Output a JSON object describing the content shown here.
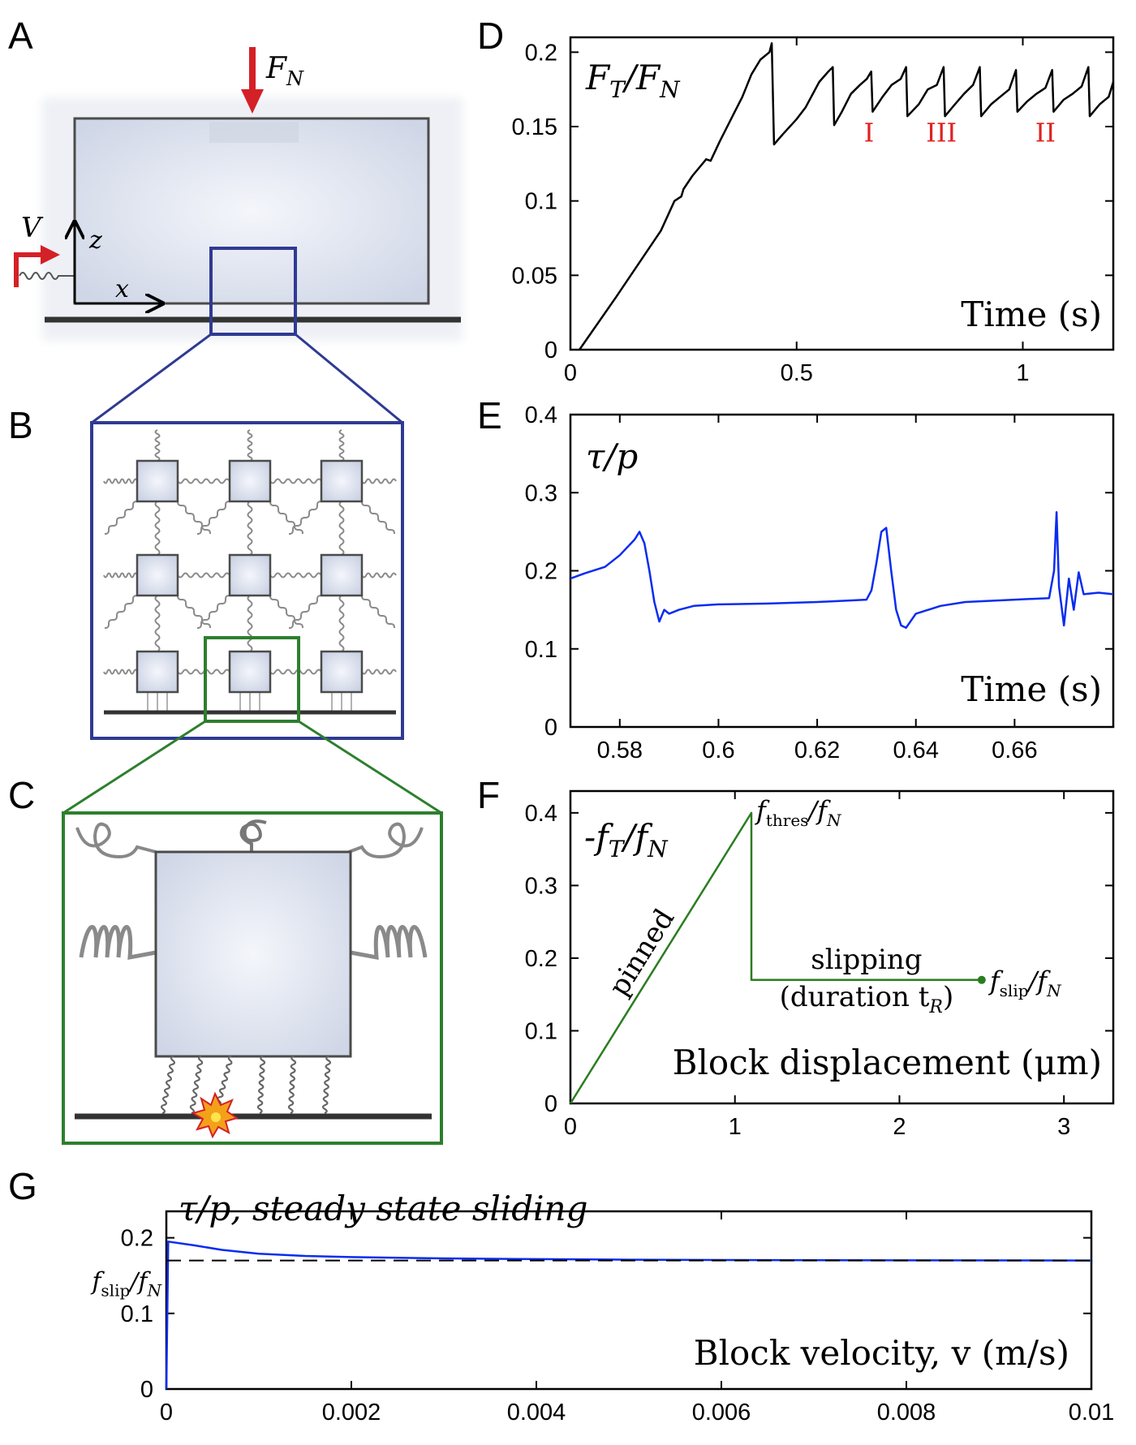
{
  "panels": {
    "A": {
      "letter": "A",
      "force_label": "F",
      "force_sub": "N",
      "velocity_label": "V",
      "z_label": "z",
      "x_label": "x"
    },
    "B": {
      "letter": "B"
    },
    "C": {
      "letter": "C"
    }
  },
  "colors": {
    "blue_frame": "#2f3a93",
    "green_frame": "#2d7f2d",
    "red_arrow": "#d42027",
    "block_fill": "#dde3ef",
    "curve_blue": "#0a2cf0",
    "curve_green": "#2a7d1f"
  },
  "chart_data": [
    {
      "id": "D",
      "letter": "D",
      "type": "line",
      "label_text": {
        "main": "F",
        "sub1": "T",
        "sep": "/F",
        "sub2": "N"
      },
      "xlabel": "Time (s)",
      "xlim": [
        0,
        1.2
      ],
      "ylim": [
        0,
        0.21
      ],
      "xticks": [
        "0",
        "0.5",
        "1"
      ],
      "xtick_values": [
        0,
        0.5,
        1
      ],
      "yticks": [
        "0",
        "0.05",
        "0.1",
        "0.15",
        "0.2"
      ],
      "ytick_values": [
        0,
        0.05,
        0.1,
        0.15,
        0.2
      ],
      "annotations": [
        {
          "text": "I",
          "x": 0.66,
          "y": 0.14
        },
        {
          "text": "III",
          "x": 0.82,
          "y": 0.14
        },
        {
          "text": "II",
          "x": 1.05,
          "y": 0.14
        }
      ],
      "series": [
        {
          "values": [
            [
              0.02,
              0
            ],
            [
              0.1,
              0.035
            ],
            [
              0.2,
              0.08
            ],
            [
              0.23,
              0.1
            ],
            [
              0.245,
              0.103
            ],
            [
              0.25,
              0.108
            ],
            [
              0.27,
              0.117
            ],
            [
              0.3,
              0.128
            ],
            [
              0.31,
              0.127
            ],
            [
              0.33,
              0.14
            ],
            [
              0.36,
              0.158
            ],
            [
              0.38,
              0.17
            ],
            [
              0.4,
              0.185
            ],
            [
              0.42,
              0.195
            ],
            [
              0.44,
              0.2
            ],
            [
              0.445,
              0.206
            ],
            [
              0.45,
              0.138
            ],
            [
              0.47,
              0.145
            ],
            [
              0.5,
              0.155
            ],
            [
              0.52,
              0.163
            ],
            [
              0.55,
              0.18
            ],
            [
              0.57,
              0.187
            ],
            [
              0.58,
              0.19
            ],
            [
              0.583,
              0.151
            ],
            [
              0.6,
              0.16
            ],
            [
              0.62,
              0.172
            ],
            [
              0.64,
              0.178
            ],
            [
              0.655,
              0.182
            ],
            [
              0.665,
              0.187
            ],
            [
              0.668,
              0.16
            ],
            [
              0.69,
              0.17
            ],
            [
              0.71,
              0.178
            ],
            [
              0.73,
              0.182
            ],
            [
              0.742,
              0.19
            ],
            [
              0.745,
              0.157
            ],
            [
              0.77,
              0.165
            ],
            [
              0.79,
              0.175
            ],
            [
              0.81,
              0.178
            ],
            [
              0.825,
              0.19
            ],
            [
              0.828,
              0.157
            ],
            [
              0.85,
              0.165
            ],
            [
              0.87,
              0.172
            ],
            [
              0.89,
              0.178
            ],
            [
              0.905,
              0.19
            ],
            [
              0.908,
              0.157
            ],
            [
              0.93,
              0.165
            ],
            [
              0.95,
              0.17
            ],
            [
              0.97,
              0.175
            ],
            [
              0.985,
              0.188
            ],
            [
              0.988,
              0.16
            ],
            [
              1.01,
              0.167
            ],
            [
              1.03,
              0.172
            ],
            [
              1.05,
              0.176
            ],
            [
              1.065,
              0.188
            ],
            [
              1.068,
              0.16
            ],
            [
              1.09,
              0.168
            ],
            [
              1.11,
              0.172
            ],
            [
              1.13,
              0.177
            ],
            [
              1.145,
              0.19
            ],
            [
              1.148,
              0.157
            ],
            [
              1.17,
              0.165
            ],
            [
              1.19,
              0.17
            ],
            [
              1.2,
              0.18
            ]
          ]
        }
      ]
    },
    {
      "id": "E",
      "letter": "E",
      "type": "line",
      "label_text": {
        "main": "τ/p"
      },
      "xlabel": "Time (s)",
      "xlim": [
        0.57,
        0.68
      ],
      "ylim": [
        0,
        0.4
      ],
      "xticks": [
        "0.58",
        "0.6",
        "0.62",
        "0.64",
        "0.66"
      ],
      "xtick_values": [
        0.58,
        0.6,
        0.62,
        0.64,
        0.66
      ],
      "yticks": [
        "0",
        "0.1",
        "0.2",
        "0.3",
        "0.4"
      ],
      "ytick_values": [
        0,
        0.1,
        0.2,
        0.3,
        0.4
      ],
      "series": [
        {
          "values": [
            [
              0.57,
              0.19
            ],
            [
              0.573,
              0.197
            ],
            [
              0.577,
              0.205
            ],
            [
              0.58,
              0.22
            ],
            [
              0.583,
              0.24
            ],
            [
              0.584,
              0.25
            ],
            [
              0.585,
              0.235
            ],
            [
              0.586,
              0.2
            ],
            [
              0.587,
              0.16
            ],
            [
              0.588,
              0.135
            ],
            [
              0.589,
              0.15
            ],
            [
              0.59,
              0.145
            ],
            [
              0.592,
              0.15
            ],
            [
              0.595,
              0.155
            ],
            [
              0.6,
              0.157
            ],
            [
              0.61,
              0.158
            ],
            [
              0.62,
              0.16
            ],
            [
              0.63,
              0.163
            ],
            [
              0.631,
              0.175
            ],
            [
              0.632,
              0.21
            ],
            [
              0.633,
              0.25
            ],
            [
              0.634,
              0.255
            ],
            [
              0.635,
              0.2
            ],
            [
              0.636,
              0.15
            ],
            [
              0.637,
              0.13
            ],
            [
              0.638,
              0.127
            ],
            [
              0.64,
              0.145
            ],
            [
              0.645,
              0.155
            ],
            [
              0.65,
              0.16
            ],
            [
              0.66,
              0.163
            ],
            [
              0.667,
              0.165
            ],
            [
              0.668,
              0.2
            ],
            [
              0.6685,
              0.275
            ],
            [
              0.669,
              0.18
            ],
            [
              0.67,
              0.13
            ],
            [
              0.671,
              0.19
            ],
            [
              0.672,
              0.15
            ],
            [
              0.673,
              0.198
            ],
            [
              0.674,
              0.17
            ],
            [
              0.677,
              0.172
            ],
            [
              0.68,
              0.17
            ]
          ]
        }
      ]
    },
    {
      "id": "F",
      "letter": "F",
      "type": "line",
      "label_text": {
        "main": "-f",
        "sub1": "T",
        "sep": "/f",
        "sub2": "N"
      },
      "xlabel": "Block displacement (μm)",
      "xlim": [
        0,
        3.3
      ],
      "ylim": [
        0,
        0.43
      ],
      "xticks": [
        "0",
        "1",
        "2",
        "3"
      ],
      "xtick_values": [
        0,
        1,
        2,
        3
      ],
      "yticks": [
        "0",
        "0.1",
        "0.2",
        "0.3",
        "0.4"
      ],
      "ytick_values": [
        0,
        0.1,
        0.2,
        0.3,
        0.4
      ],
      "annotations": {
        "pinned": "pinned",
        "slipping": "slipping",
        "duration": "(duration t",
        "duration_sub": "R",
        "duration_end": ")",
        "thres_main": "f",
        "thres_sub": "thres",
        "thres_sep": "/f",
        "thres_sub2": "N",
        "slip_main": "f",
        "slip_sub": "slip",
        "slip_sep": "/f",
        "slip_sub2": "N"
      },
      "series": [
        {
          "values": [
            [
              0,
              0
            ],
            [
              1.1,
              0.4
            ],
            [
              1.1,
              0.17
            ],
            [
              2.5,
              0.17
            ]
          ]
        }
      ]
    },
    {
      "id": "G",
      "letter": "G",
      "type": "line",
      "label_text": {
        "main": "τ/p, steady state sliding"
      },
      "xlabel": "Block velocity, v (m/s)",
      "xlim": [
        0,
        0.01
      ],
      "ylim": [
        0,
        0.235
      ],
      "xticks": [
        "0",
        "0.002",
        "0.004",
        "0.006",
        "0.008",
        "0.01"
      ],
      "xtick_values": [
        0,
        0.002,
        0.004,
        0.006,
        0.008,
        0.01
      ],
      "yticks": [
        "0",
        "0.1",
        "0.2"
      ],
      "ytick_values": [
        0,
        0.1,
        0.2
      ],
      "fslip": {
        "main": "f",
        "sub": "slip",
        "sep": "/f",
        "sub2": "N",
        "value": 0.17
      },
      "series": [
        {
          "values": [
            [
              0,
              0
            ],
            [
              2e-05,
              0.195
            ],
            [
              0.0003,
              0.19
            ],
            [
              0.0006,
              0.184
            ],
            [
              0.001,
              0.179
            ],
            [
              0.0015,
              0.176
            ],
            [
              0.002,
              0.1745
            ],
            [
              0.003,
              0.1728
            ],
            [
              0.004,
              0.1718
            ],
            [
              0.005,
              0.171
            ],
            [
              0.006,
              0.1706
            ],
            [
              0.008,
              0.1702
            ],
            [
              0.01,
              0.17
            ]
          ]
        }
      ]
    }
  ]
}
